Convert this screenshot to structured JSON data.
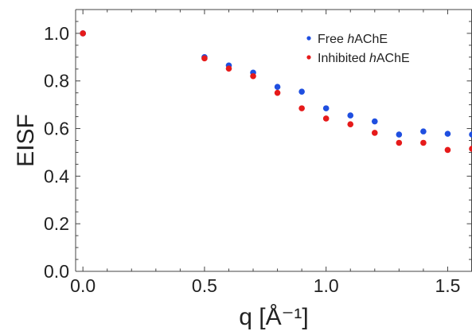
{
  "chart_data": {
    "type": "scatter",
    "xlabel": "q [Å⁻¹]",
    "ylabel": "EISF",
    "xlim": [
      -0.03,
      1.6
    ],
    "ylim": [
      0.0,
      1.1
    ],
    "x_ticks": [
      "0.0",
      "0.5",
      "1.0",
      "1.5"
    ],
    "x_tick_values": [
      0.0,
      0.5,
      1.0,
      1.5
    ],
    "y_ticks": [
      "0.0",
      "0.2",
      "0.4",
      "0.6",
      "0.8",
      "1.0"
    ],
    "y_tick_values": [
      0.0,
      0.2,
      0.4,
      0.6,
      0.8,
      1.0
    ],
    "grid": false,
    "legend_position": "top-right",
    "series": [
      {
        "name": "Free hAChE",
        "name_parts": [
          "Free ",
          "h",
          "AChE"
        ],
        "color": "#1f4fe0",
        "x": [
          0.0,
          0.5,
          0.6,
          0.7,
          0.8,
          0.9,
          1.0,
          1.1,
          1.2,
          1.3,
          1.4,
          1.5,
          1.6
        ],
        "y": [
          1.0,
          0.9,
          0.865,
          0.835,
          0.775,
          0.755,
          0.685,
          0.655,
          0.63,
          0.575,
          0.588,
          0.578,
          0.575
        ]
      },
      {
        "name": "Inhibited hAChE",
        "name_parts": [
          "Inhibited ",
          "h",
          "AChE"
        ],
        "color": "#e61a1a",
        "x": [
          0.0,
          0.5,
          0.6,
          0.7,
          0.8,
          0.9,
          1.0,
          1.1,
          1.2,
          1.3,
          1.4,
          1.5,
          1.6
        ],
        "y": [
          1.0,
          0.895,
          0.852,
          0.82,
          0.75,
          0.685,
          0.642,
          0.618,
          0.582,
          0.54,
          0.54,
          0.51,
          0.515
        ]
      }
    ]
  }
}
